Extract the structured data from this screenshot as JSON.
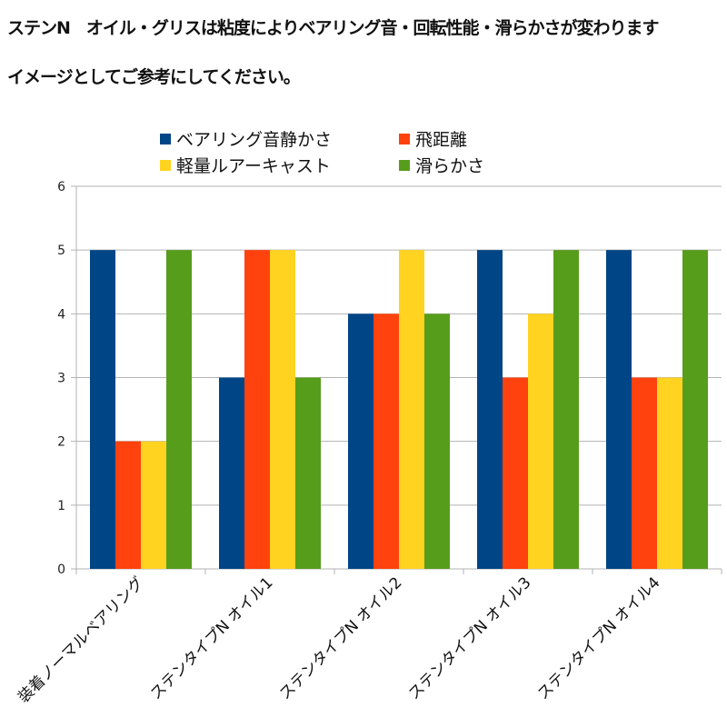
{
  "heading": {
    "line1": "ステンN　オイル・グリスは粘度によりベアリング音・回転性能・滑らかさが変わります",
    "line2": "イメージとしてご参考にしてください。"
  },
  "chart_data": {
    "type": "bar",
    "title": "",
    "xlabel": "",
    "ylabel": "",
    "ylim": [
      0,
      6
    ],
    "yticks": [
      0,
      1,
      2,
      3,
      4,
      5,
      6
    ],
    "grid": true,
    "legend_position": "top",
    "categories": [
      "装着ノーマルベアリング",
      "ステンタイプN オイル1",
      "ステンタイプN オイル2",
      "ステンタイプN オイル3",
      "ステンタイプN オイル4"
    ],
    "series": [
      {
        "name": "ベアリング音静かさ",
        "color": "#004586",
        "values": [
          5,
          3,
          4,
          5,
          5
        ]
      },
      {
        "name": "飛距離",
        "color": "#ff420e",
        "values": [
          2,
          5,
          4,
          3,
          3
        ]
      },
      {
        "name": "軽量ルアーキャスト",
        "color": "#ffd320",
        "values": [
          2,
          5,
          5,
          4,
          3
        ]
      },
      {
        "name": "滑らかさ",
        "color": "#579d1c",
        "values": [
          5,
          3,
          4,
          5,
          5
        ]
      }
    ]
  }
}
